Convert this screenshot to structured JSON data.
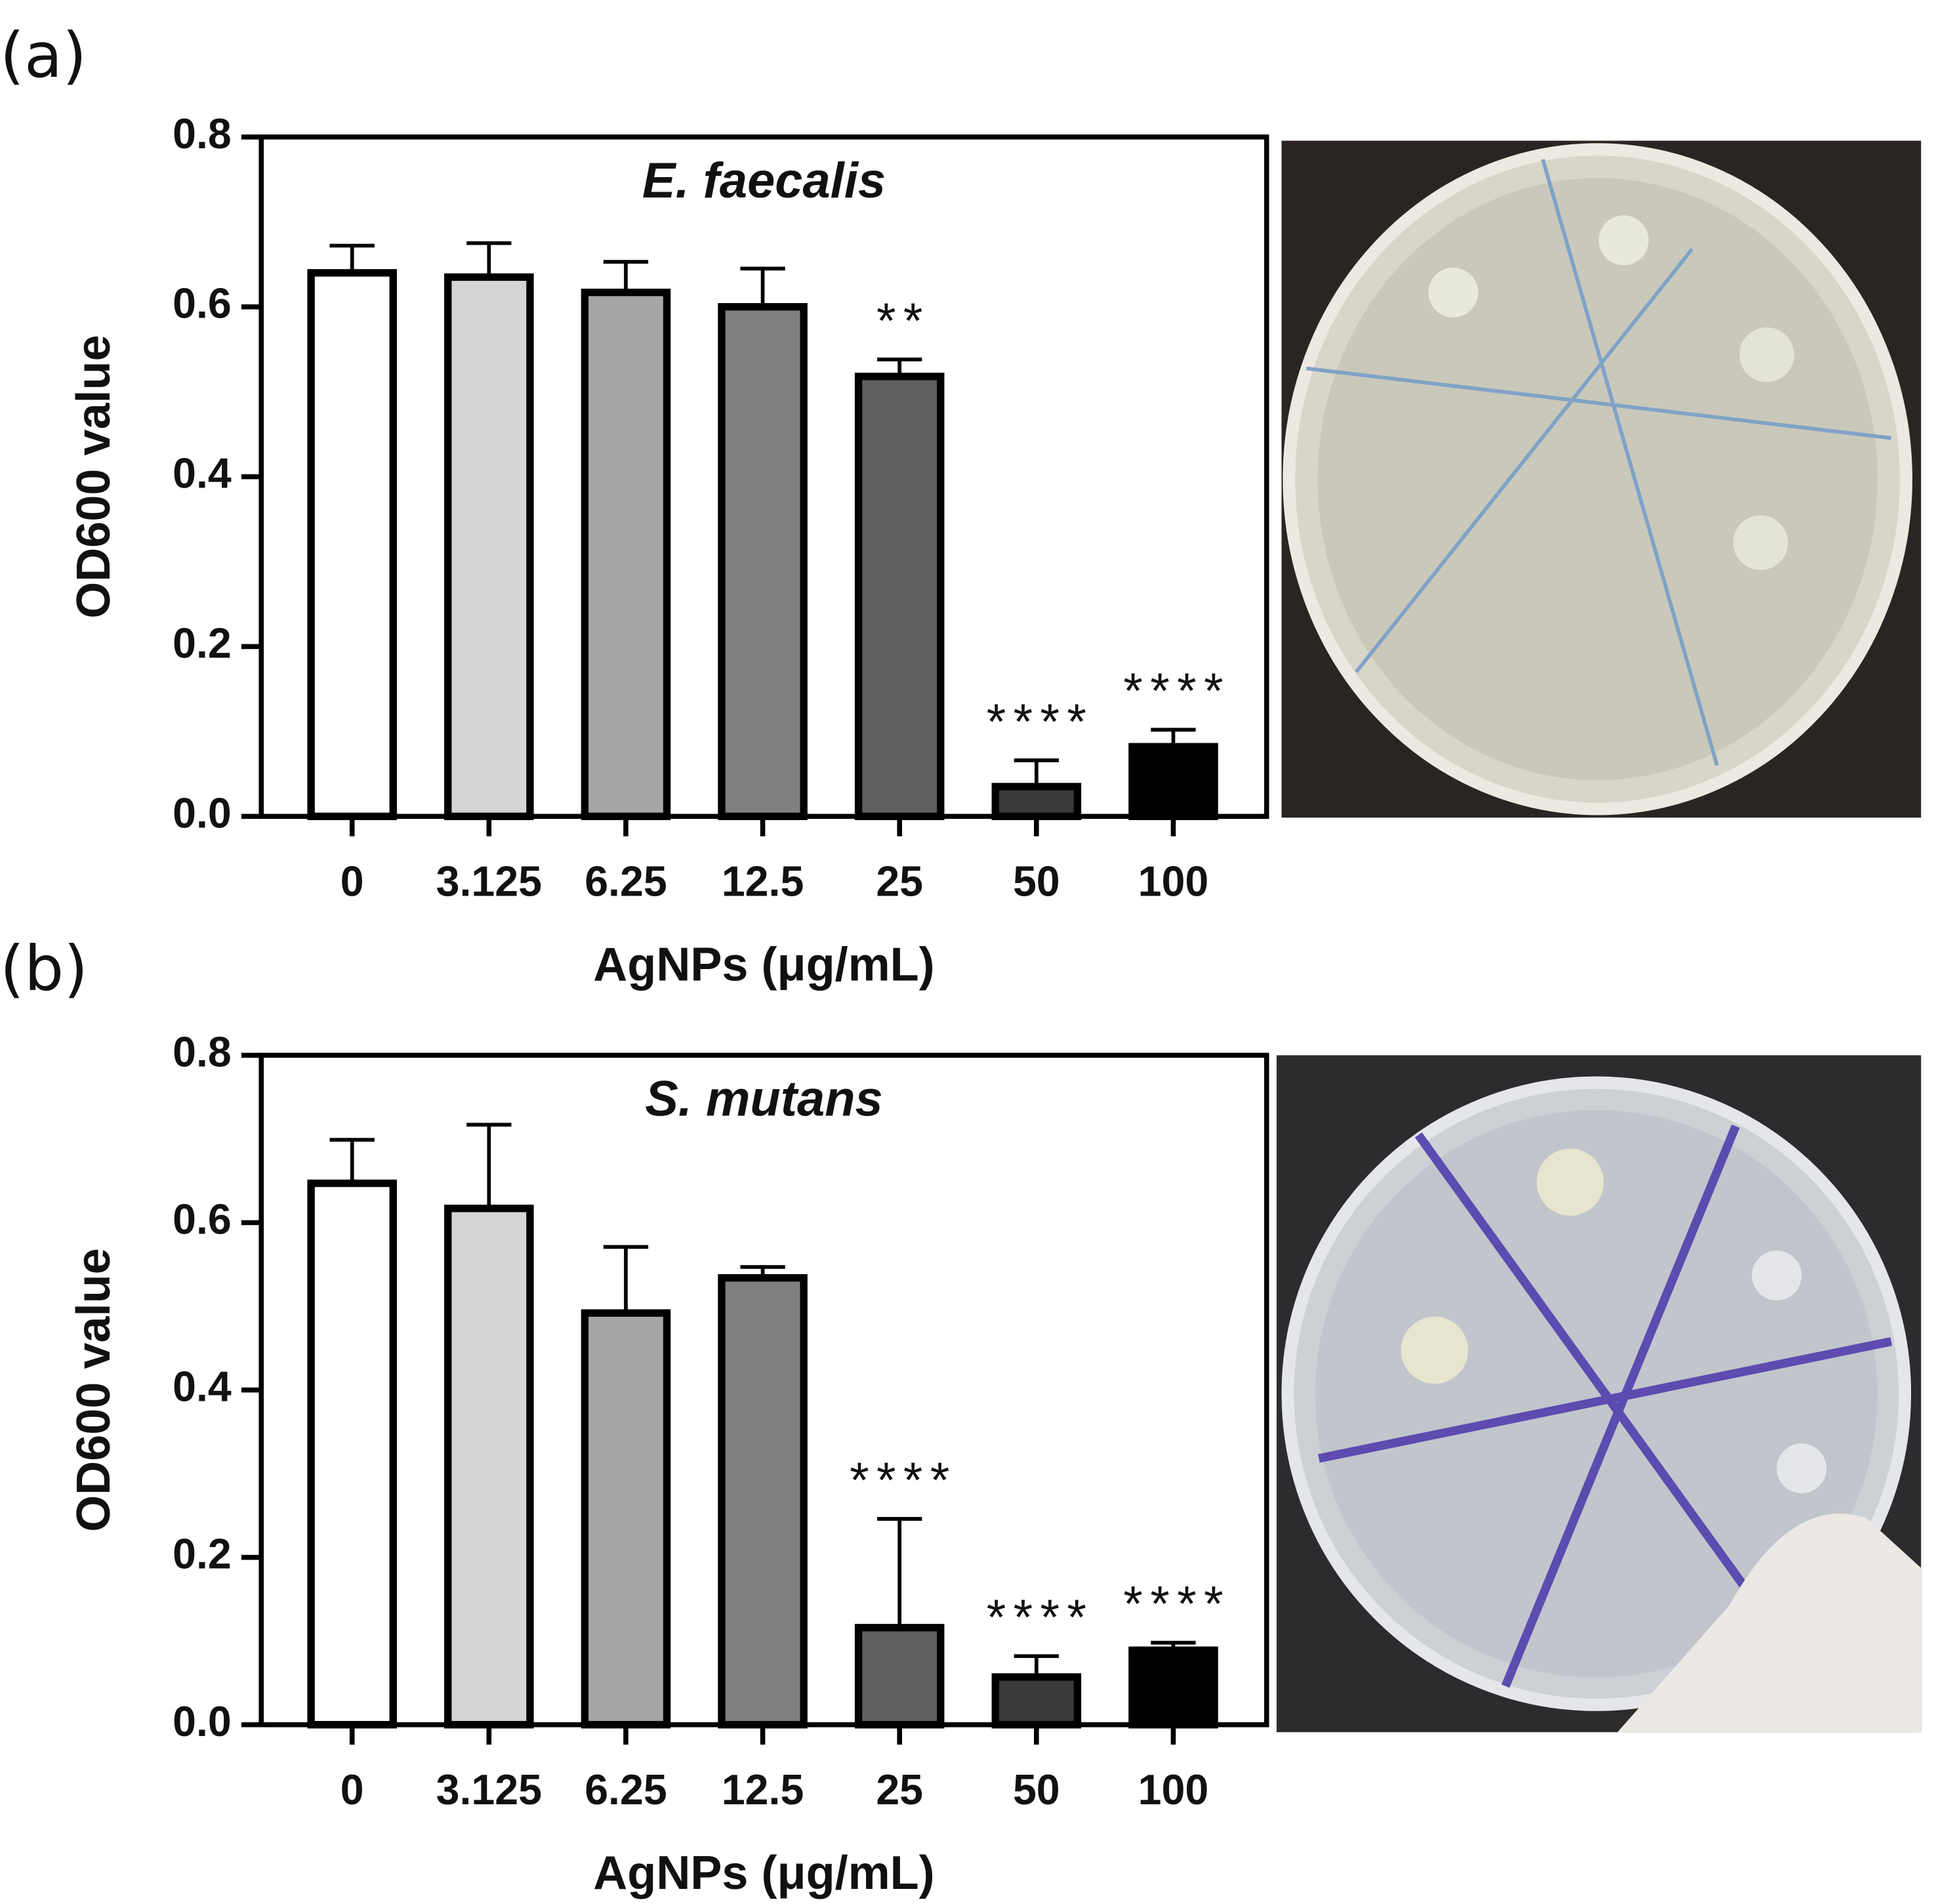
{
  "chart_data": [
    {
      "type": "bar",
      "panel_label": "(a)",
      "title": "E. faecalis",
      "x_label": "AgNPs (μg/mL)",
      "y_label": "OD600 value",
      "categories": [
        "0",
        "3.125",
        "6.25",
        "12.5",
        "25",
        "50",
        "100"
      ],
      "values": [
        0.64,
        0.635,
        0.617,
        0.6,
        0.518,
        0.035,
        0.082
      ],
      "errors": [
        0.032,
        0.04,
        0.036,
        0.045,
        0.02,
        0.031,
        0.02
      ],
      "colors": [
        "#ffffff",
        "#d4d4d4",
        "#a6a6a8",
        "#808080",
        "#606060",
        "#3a3a3a",
        "#000000"
      ],
      "significance": [
        null,
        null,
        null,
        null,
        "**",
        "****",
        "****"
      ],
      "ylim": [
        0,
        0.8
      ],
      "yticks": [
        {
          "value": 0,
          "label": "0.0"
        },
        0.2,
        0.4,
        0.6,
        0.8
      ]
    },
    {
      "type": "bar",
      "panel_label": "(b)",
      "title": "S. mutans",
      "x_label": "AgNPs (μg/mL)",
      "y_label": "OD600 value",
      "categories": [
        "0",
        "3.125",
        "6.25",
        "12.5",
        "25",
        "50",
        "100"
      ],
      "values": [
        0.647,
        0.617,
        0.492,
        0.534,
        0.116,
        0.057,
        0.089
      ],
      "errors": [
        0.052,
        0.1,
        0.079,
        0.013,
        0.13,
        0.025,
        0.009
      ],
      "colors": [
        "#ffffff",
        "#d4d4d4",
        "#a6a6a8",
        "#808080",
        "#606060",
        "#3a3a3a",
        "#000000"
      ],
      "significance": [
        null,
        null,
        null,
        null,
        "****",
        "****",
        "****"
      ],
      "ylim": [
        0,
        0.8
      ],
      "yticks": [
        {
          "value": 0,
          "label": "0.0"
        },
        0.2,
        0.4,
        0.6,
        0.8
      ]
    }
  ]
}
